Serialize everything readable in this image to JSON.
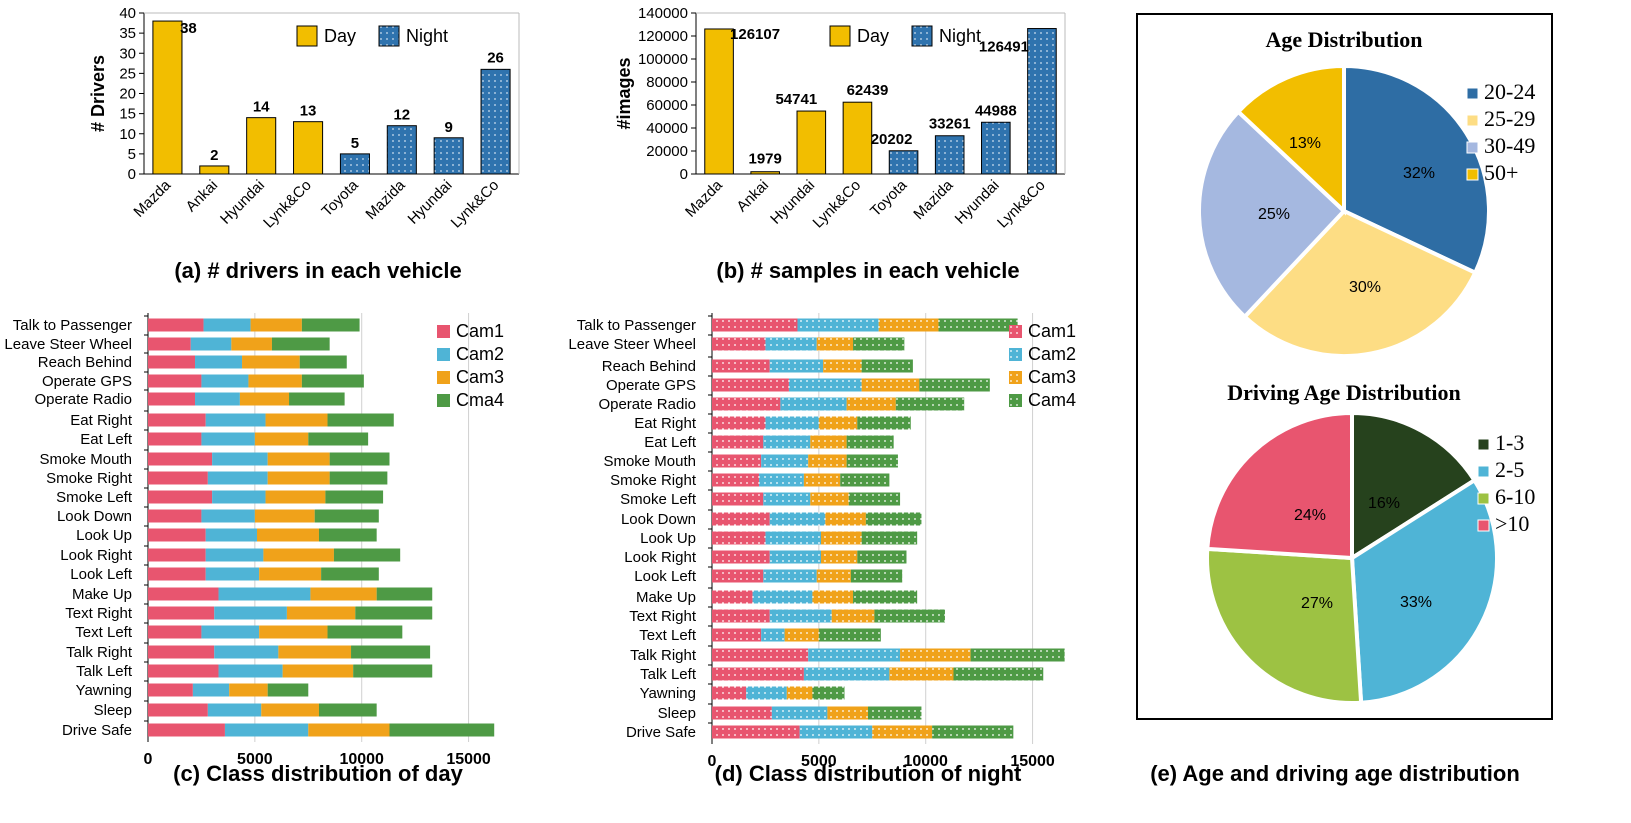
{
  "colors": {
    "day": "#F2BE00",
    "night": "#2F73AE",
    "cam1": "#E8556F",
    "cam2": "#4FB4D6",
    "cam3": "#F0A21A",
    "cam4": "#4E9A45",
    "age": [
      "#2E6DA4",
      "#FDDD84",
      "#A5B8E0",
      "#F2BE00"
    ],
    "drive": [
      "#26421D",
      "#4FB4D6",
      "#9DC243",
      "#E8556F"
    ]
  },
  "chart_data": [
    {
      "id": "a",
      "type": "bar",
      "caption": "(a) # drivers in each vehicle",
      "ylabel": "# Drivers",
      "categories": [
        "Mazda",
        "Ankai",
        "Hyundai",
        "Lynk&Co",
        "Toyota",
        "Mazida",
        "Hyundai",
        "Lynk&Co"
      ],
      "values": [
        38,
        2,
        14,
        13,
        5,
        12,
        9,
        26
      ],
      "value_labels": [
        "38",
        "2",
        "14",
        "13",
        "5",
        "12",
        "9",
        "26"
      ],
      "groups": [
        "day",
        "day",
        "day",
        "day",
        "night",
        "night",
        "night",
        "night"
      ],
      "legend": [
        "Day",
        "Night"
      ],
      "ylim": [
        0,
        40
      ],
      "yticks": [
        "0",
        "5",
        "10",
        "15",
        "20",
        "25",
        "30",
        "35",
        "40"
      ]
    },
    {
      "id": "b",
      "type": "bar",
      "caption": "(b) # samples in each vehicle",
      "ylabel": "#images",
      "categories": [
        "Mazda",
        "Ankai",
        "Hyundai",
        "Lynk&Co",
        "Toyota",
        "Mazida",
        "Hyundai",
        "Lynk&Co"
      ],
      "values": [
        126107,
        1979,
        54741,
        62439,
        20202,
        33261,
        44988,
        126491
      ],
      "value_labels": [
        "126107",
        "1979",
        "54741",
        "62439",
        "20202",
        "33261",
        "44988",
        "126491"
      ],
      "groups": [
        "day",
        "day",
        "day",
        "day",
        "night",
        "night",
        "night",
        "night"
      ],
      "legend": [
        "Day",
        "Night"
      ],
      "ylim": [
        0,
        140000
      ],
      "yticks": [
        "0",
        "20000",
        "40000",
        "60000",
        "80000",
        "100000",
        "120000",
        "140000"
      ]
    },
    {
      "id": "c",
      "type": "bar",
      "orientation": "horizontal-stacked",
      "caption": "(c) Class distribution of day",
      "categories": [
        "Talk to Passenger",
        "Leave Steer Wheel",
        "Reach Behind",
        "Operate GPS",
        "Operate Radio",
        "Eat Right",
        "Eat Left",
        "Smoke Mouth",
        "Smoke Right",
        "Smoke Left",
        "Look Down",
        "Look Up",
        "Look Right",
        "Look Left",
        "Make Up",
        "Text Right",
        "Text Left",
        "Talk Right",
        "Talk Left",
        "Yawning",
        "Sleep",
        "Drive Safe"
      ],
      "series": [
        {
          "name": "Cam1",
          "values": [
            2600,
            2000,
            2200,
            2500,
            2200,
            2700,
            2500,
            3000,
            2800,
            3000,
            2500,
            2700,
            2700,
            2700,
            3300,
            3100,
            2500,
            3100,
            3300,
            2100,
            2800,
            3600
          ]
        },
        {
          "name": "Cam2",
          "values": [
            2200,
            1900,
            2200,
            2200,
            2100,
            2800,
            2500,
            2600,
            2800,
            2500,
            2500,
            2400,
            2700,
            2500,
            4300,
            3400,
            2700,
            3000,
            3000,
            1700,
            2500,
            3900
          ]
        },
        {
          "name": "Cam3",
          "values": [
            2400,
            1900,
            2700,
            2500,
            2300,
            2900,
            2500,
            2900,
            2900,
            2800,
            2800,
            2900,
            3300,
            2900,
            3100,
            3200,
            3200,
            3400,
            3300,
            1800,
            2700,
            3800
          ]
        },
        {
          "name": "Cma4",
          "values": [
            2700,
            2700,
            2200,
            2900,
            2600,
            3100,
            2800,
            2800,
            2700,
            2700,
            3000,
            2700,
            3100,
            2700,
            2600,
            3600,
            3500,
            3700,
            3700,
            1900,
            2700,
            4900
          ]
        }
      ],
      "xlim": [
        0,
        17500
      ],
      "xticks": [
        "0",
        "5000",
        "10000",
        "15000"
      ],
      "grid": true
    },
    {
      "id": "d",
      "type": "bar",
      "orientation": "horizontal-stacked",
      "caption": "(d) Class distribution of night",
      "categories": [
        "Talk to Passenger",
        "Leave Steer Wheel",
        "Reach Behind",
        "Operate GPS",
        "Operate Radio",
        "Eat Right",
        "Eat Left",
        "Smoke Mouth",
        "Smoke Right",
        "Smoke Left",
        "Look Down",
        "Look Up",
        "Look Right",
        "Look Left",
        "Make Up",
        "Text Right",
        "Text Left",
        "Talk Right",
        "Talk Left",
        "Yawning",
        "Sleep",
        "Drive Safe"
      ],
      "series": [
        {
          "name": "Cam1",
          "values": [
            4000,
            2500,
            2700,
            3600,
            3200,
            2500,
            2400,
            2300,
            2200,
            2400,
            2700,
            2500,
            2700,
            2400,
            1900,
            2700,
            2300,
            4500,
            4300,
            1600,
            2800,
            4100
          ]
        },
        {
          "name": "Cam2",
          "values": [
            3800,
            2400,
            2500,
            3400,
            3100,
            2500,
            2200,
            2200,
            2100,
            2200,
            2600,
            2600,
            2400,
            2500,
            2800,
            2900,
            1100,
            4300,
            4000,
            1900,
            2600,
            3400
          ]
        },
        {
          "name": "Cam3",
          "values": [
            2800,
            1700,
            1800,
            2700,
            2300,
            1800,
            1700,
            1800,
            1700,
            1800,
            1900,
            1900,
            1700,
            1600,
            1900,
            2000,
            1600,
            3300,
            3000,
            1200,
            1900,
            2800
          ]
        },
        {
          "name": "Cam4",
          "values": [
            3700,
            2400,
            2400,
            3300,
            3200,
            2500,
            2200,
            2400,
            2300,
            2400,
            2600,
            2600,
            2300,
            2400,
            3000,
            3300,
            2900,
            4400,
            4200,
            1500,
            2500,
            3800
          ]
        }
      ],
      "xlim": [
        0,
        17500
      ],
      "xticks": [
        "0",
        "5000",
        "10000",
        "15000"
      ],
      "grid": true
    },
    {
      "id": "e1",
      "type": "pie",
      "title": "Age Distribution",
      "labels": [
        "20-24",
        "25-29",
        "30-49",
        "50+"
      ],
      "values": [
        32,
        30,
        25,
        13
      ],
      "value_labels": [
        "32%",
        "30%",
        "25%",
        "13%"
      ]
    },
    {
      "id": "e2",
      "type": "pie",
      "title": "Driving Age Distribution",
      "labels": [
        "1-3",
        "2-5",
        "6-10",
        ">10"
      ],
      "values": [
        16,
        33,
        27,
        24
      ],
      "value_labels": [
        "16%",
        "33%",
        "27%",
        "24%"
      ]
    }
  ],
  "e_caption": "(e) Age and driving age distribution"
}
